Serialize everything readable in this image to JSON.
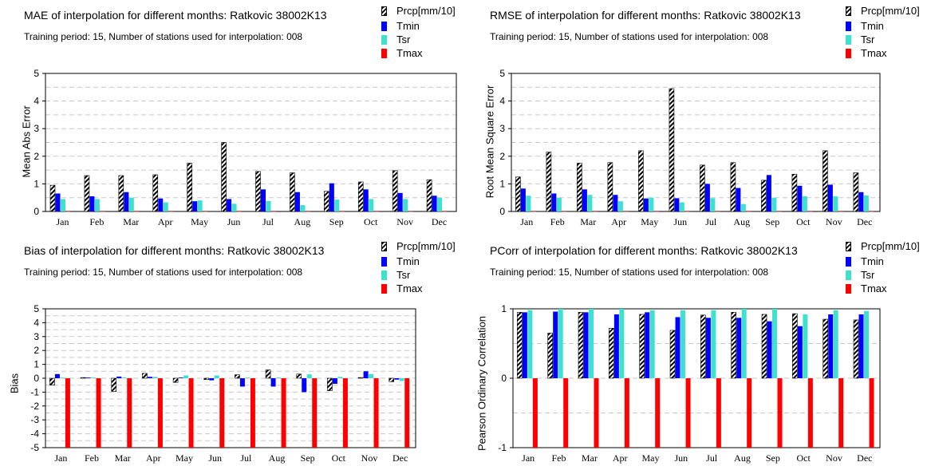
{
  "colors": {
    "prcp_stripe_dark": "#000000",
    "prcp_stripe_light": "#ffffff",
    "tmin": "#0000ff",
    "tsr": "#40e0d0",
    "tmax": "#ff0000",
    "grid": "#c8c8c8"
  },
  "chart_data": [
    {
      "type": "bar",
      "title": "MAE of interpolation for different months: Ratkovic  38002K13",
      "subtitle": "Training period: 15, Number of stations used for interpolation: 008",
      "ylabel": "Mean Abs Error",
      "ylim": [
        0,
        5
      ],
      "yticks": [
        0,
        1,
        2,
        3,
        4,
        5
      ],
      "ytick_labels": [
        "0",
        "1",
        "2",
        "3",
        "4",
        "5"
      ],
      "grid": "dashed horizontal at 0.5 steps",
      "legend_placement": "top-right",
      "categories": [
        "Jan",
        "Feb",
        "Mar",
        "Apr",
        "May",
        "Jun",
        "Jul",
        "Aug",
        "Sep",
        "Oct",
        "Nov",
        "Dec"
      ],
      "series": [
        {
          "name": "Prcp[mm/10]",
          "values": [
            0.95,
            1.3,
            1.3,
            1.33,
            1.75,
            2.5,
            1.45,
            1.4,
            0.73,
            1.07,
            1.48,
            1.15
          ]
        },
        {
          "name": "Tmin",
          "values": [
            0.65,
            0.55,
            0.7,
            0.47,
            0.37,
            0.45,
            0.8,
            0.7,
            1.02,
            0.8,
            0.67,
            0.57
          ]
        },
        {
          "name": "Tsr",
          "values": [
            0.45,
            0.45,
            0.5,
            0.33,
            0.4,
            0.28,
            0.38,
            0.23,
            0.43,
            0.45,
            0.45,
            0.5
          ]
        },
        {
          "name": "Tmax",
          "values": [
            0,
            0,
            0,
            0,
            0,
            0,
            0,
            0,
            0,
            0,
            0,
            0
          ]
        }
      ]
    },
    {
      "type": "bar",
      "title": "RMSE of interpolation for different months: Ratkovic  38002K13",
      "subtitle": "Training period: 15, Number of stations used for interpolation: 008",
      "ylabel": "Root Mean Square Error",
      "ylim": [
        0,
        5
      ],
      "yticks": [
        0,
        1,
        2,
        3,
        4,
        5
      ],
      "ytick_labels": [
        "0",
        "1",
        "2",
        "3",
        "4",
        "5"
      ],
      "grid": "dashed horizontal at 0.5 steps",
      "legend_placement": "top-right",
      "categories": [
        "Jan",
        "Feb",
        "Mar",
        "Apr",
        "May",
        "Jun",
        "Jul",
        "Aug",
        "Sep",
        "Oct",
        "Nov",
        "Dec"
      ],
      "series": [
        {
          "name": "Prcp[mm/10]",
          "values": [
            1.25,
            2.15,
            1.75,
            1.77,
            2.2,
            4.45,
            1.68,
            1.77,
            1.13,
            1.35,
            2.2,
            1.4
          ]
        },
        {
          "name": "Tmin",
          "values": [
            0.83,
            0.65,
            0.8,
            0.6,
            0.47,
            0.48,
            1.0,
            0.85,
            1.32,
            0.93,
            0.97,
            0.7
          ]
        },
        {
          "name": "Tsr",
          "values": [
            0.57,
            0.5,
            0.6,
            0.37,
            0.5,
            0.33,
            0.48,
            0.27,
            0.5,
            0.55,
            0.55,
            0.58
          ]
        },
        {
          "name": "Tmax",
          "values": [
            0,
            0,
            0,
            0,
            0,
            0,
            0,
            0,
            0,
            0,
            0,
            0
          ]
        }
      ]
    },
    {
      "type": "bar",
      "title": "Bias of interpolation for different months: Ratkovic  38002K13",
      "subtitle": "Training period: 15, Number of stations used for interpolation: 008",
      "ylabel": "Bias",
      "ylim": [
        -5,
        5
      ],
      "yticks": [
        -5,
        -4,
        -3,
        -2,
        -1,
        0,
        1,
        2,
        3,
        4,
        5
      ],
      "ytick_labels": [
        "-5",
        "-4",
        "-3",
        "-2",
        "-1",
        "0",
        "1",
        "2",
        "3",
        "4",
        "5"
      ],
      "grid": "dashed horizontal at 0.5 steps",
      "legend_placement": "top-right",
      "categories": [
        "Jan",
        "Feb",
        "Mar",
        "Apr",
        "May",
        "Jun",
        "Jul",
        "Aug",
        "Sep",
        "Oct",
        "Nov",
        "Dec"
      ],
      "series": [
        {
          "name": "Prcp[mm/10]",
          "values": [
            -0.5,
            0.05,
            -0.95,
            0.35,
            -0.3,
            -0.1,
            0.25,
            0.6,
            0.3,
            -0.9,
            0.05,
            -0.25
          ]
        },
        {
          "name": "Tmin",
          "values": [
            0.3,
            0.05,
            0.12,
            0.1,
            0.05,
            -0.15,
            -0.6,
            -0.6,
            -1.0,
            -0.4,
            0.5,
            -0.1
          ]
        },
        {
          "name": "Tsr",
          "values": [
            0.05,
            0.05,
            0.05,
            0.1,
            0.2,
            0.2,
            0.05,
            0.05,
            0.28,
            0.1,
            0.3,
            -0.2
          ]
        },
        {
          "name": "Tmax",
          "values": [
            -5,
            -5,
            -5,
            -5,
            -5,
            -5,
            -5,
            -5,
            -5,
            -5,
            -5,
            -5
          ]
        }
      ]
    },
    {
      "type": "bar",
      "title": "PCorr of interpolation for different months: Ratkovic  38002K13",
      "subtitle": "Training period: 15, Number of stations used for interpolation: 008",
      "ylabel": "Pearson Ordinary Correlation",
      "ylim": [
        -1,
        1
      ],
      "yticks": [
        -1,
        0,
        1
      ],
      "ytick_labels": [
        "-1",
        "0",
        "1"
      ],
      "grid": "dashed horizontal at 0.5 steps",
      "legend_placement": "top-right",
      "categories": [
        "Jan",
        "Feb",
        "Mar",
        "Apr",
        "May",
        "Jun",
        "Jul",
        "Aug",
        "Sep",
        "Oct",
        "Nov",
        "Dec"
      ],
      "series": [
        {
          "name": "Prcp[mm/10]",
          "values": [
            0.95,
            0.65,
            0.95,
            0.72,
            0.92,
            0.69,
            0.91,
            0.95,
            0.92,
            0.93,
            0.85,
            0.84
          ]
        },
        {
          "name": "Tmin",
          "values": [
            0.95,
            0.96,
            0.95,
            0.92,
            0.95,
            0.88,
            0.87,
            0.87,
            0.82,
            0.75,
            0.92,
            0.92
          ]
        },
        {
          "name": "Tsr",
          "values": [
            0.98,
            1.0,
            1.0,
            1.0,
            0.98,
            0.98,
            0.98,
            1.0,
            1.0,
            0.92,
            0.98,
            0.97
          ]
        },
        {
          "name": "Tmax",
          "values": [
            -1,
            -1,
            -1,
            -1,
            -1,
            -1,
            -1,
            -1,
            -1,
            -1,
            -1,
            -1
          ]
        }
      ]
    }
  ]
}
